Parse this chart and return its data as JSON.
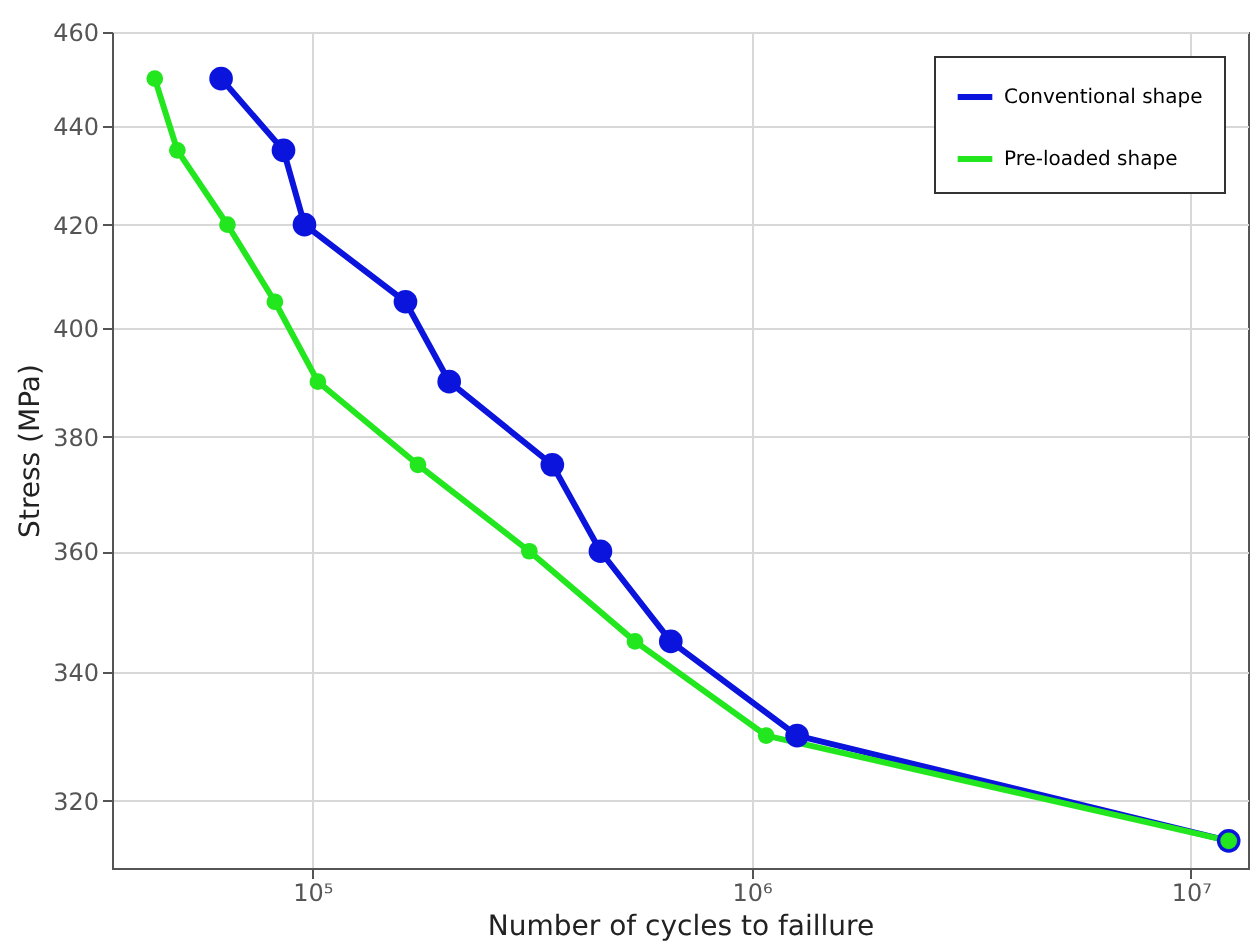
{
  "chart_data": {
    "type": "line",
    "xlabel": "Number of cycles to faillure",
    "ylabel": "Stress (MPa)",
    "log": "xy",
    "grid": true,
    "legend": "top right",
    "marker": "circle",
    "line_style": "solid",
    "xlim": [
      35000,
      13500000
    ],
    "xticks": [
      {
        "value": 100000,
        "label": "10⁵"
      },
      {
        "value": 1000000,
        "label": "10⁶"
      },
      {
        "value": 10000000,
        "label": "10⁷"
      }
    ],
    "ylim": [
      310,
      460
    ],
    "yticks": [
      320,
      340,
      360,
      380,
      400,
      420,
      440,
      460
    ],
    "series": [
      {
        "name": "Conventional shape",
        "color": "#0a14dc",
        "x": [
          62000,
          86000,
          96000,
          163000,
          205000,
          352000,
          453000,
          655000,
          1270000,
          12200000
        ],
        "values": [
          450,
          435,
          420,
          405,
          390,
          375,
          360,
          345,
          330,
          314
        ]
      },
      {
        "name": "Pre-loaded shape",
        "color": "#22e61e",
        "x": [
          43800,
          49300,
          64100,
          82200,
          103000,
          174000,
          312000,
          543000,
          1080000,
          12200000
        ],
        "values": [
          450,
          435,
          420,
          405,
          390,
          375,
          360,
          345,
          330,
          314
        ]
      }
    ]
  }
}
